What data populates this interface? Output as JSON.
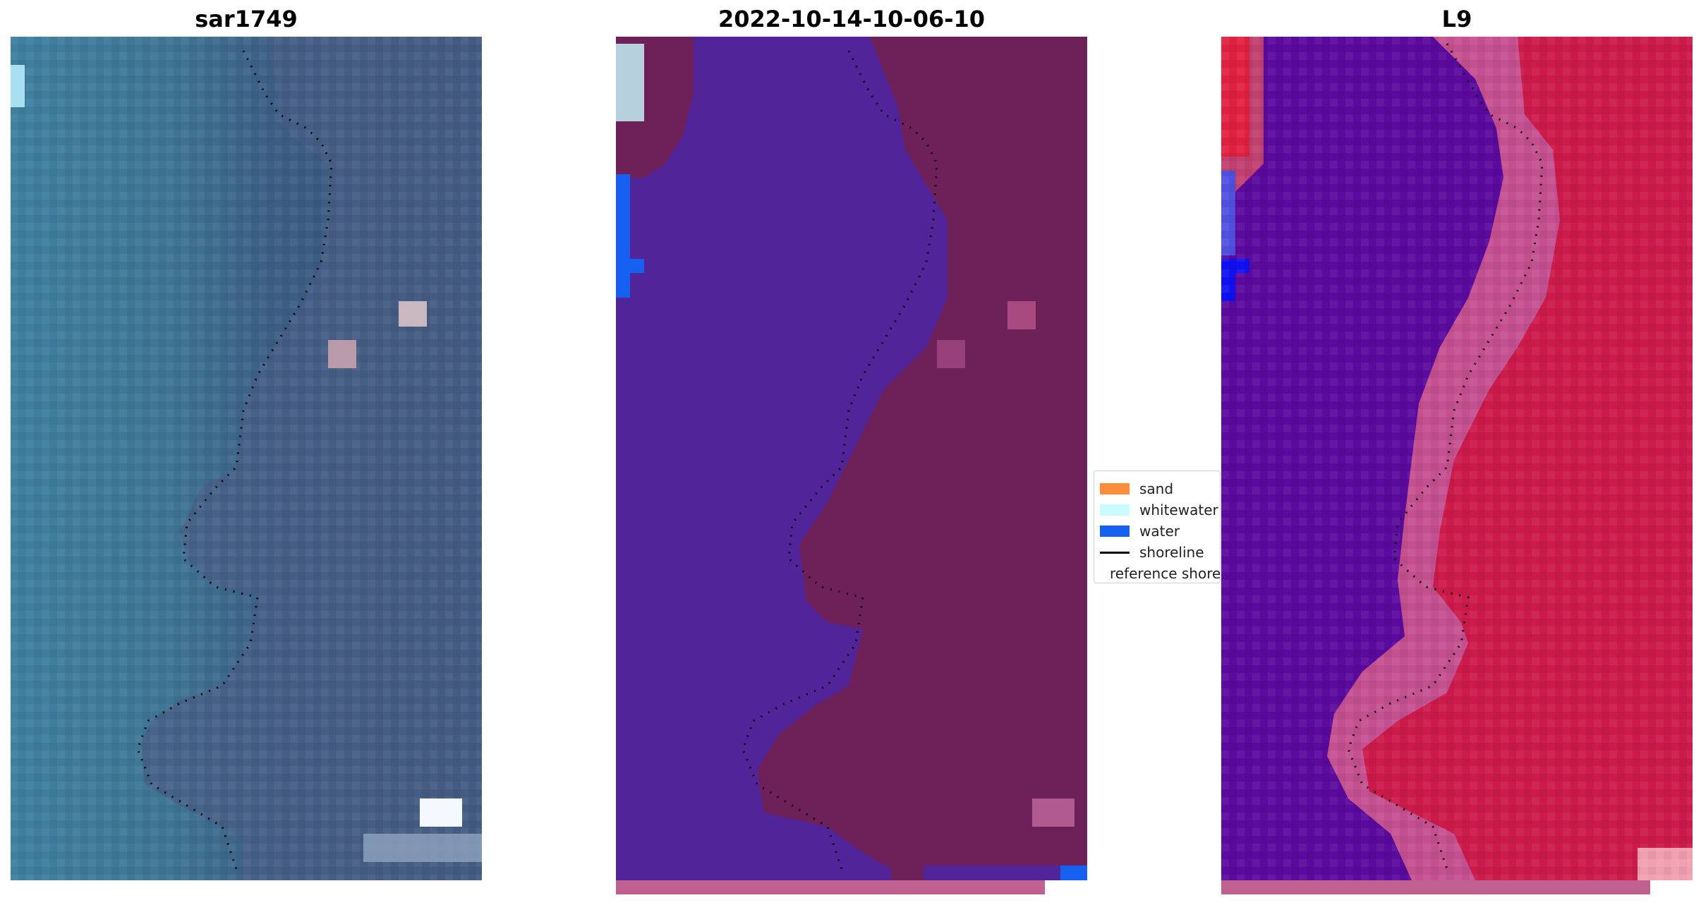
{
  "panels": [
    {
      "title": "sar1749",
      "kind": "rgb"
    },
    {
      "title": "2022-10-14-10-06-10",
      "kind": "classified"
    },
    {
      "title": "L9",
      "kind": "mndwi"
    }
  ],
  "legend": [
    {
      "label": "sand",
      "color": "#ff8c3a",
      "type": "patch"
    },
    {
      "label": "whitewater",
      "color": "#c8fcff",
      "type": "patch"
    },
    {
      "label": "water",
      "color": "#1560f0",
      "type": "patch"
    },
    {
      "label": "shoreline",
      "color": "#000000",
      "type": "line"
    },
    {
      "label": "reference shoreline",
      "color": "#a03038",
      "type": "patch"
    }
  ],
  "colors": {
    "water_class": "#52249a",
    "land_class": "#6e2058",
    "rgb_water": "#3f7d9a",
    "rgb_land": "#3a5578",
    "mndwi_water": "#5a0a9c",
    "mndwi_land": "#cc1a4a",
    "bottom_strip": "#c06090"
  }
}
